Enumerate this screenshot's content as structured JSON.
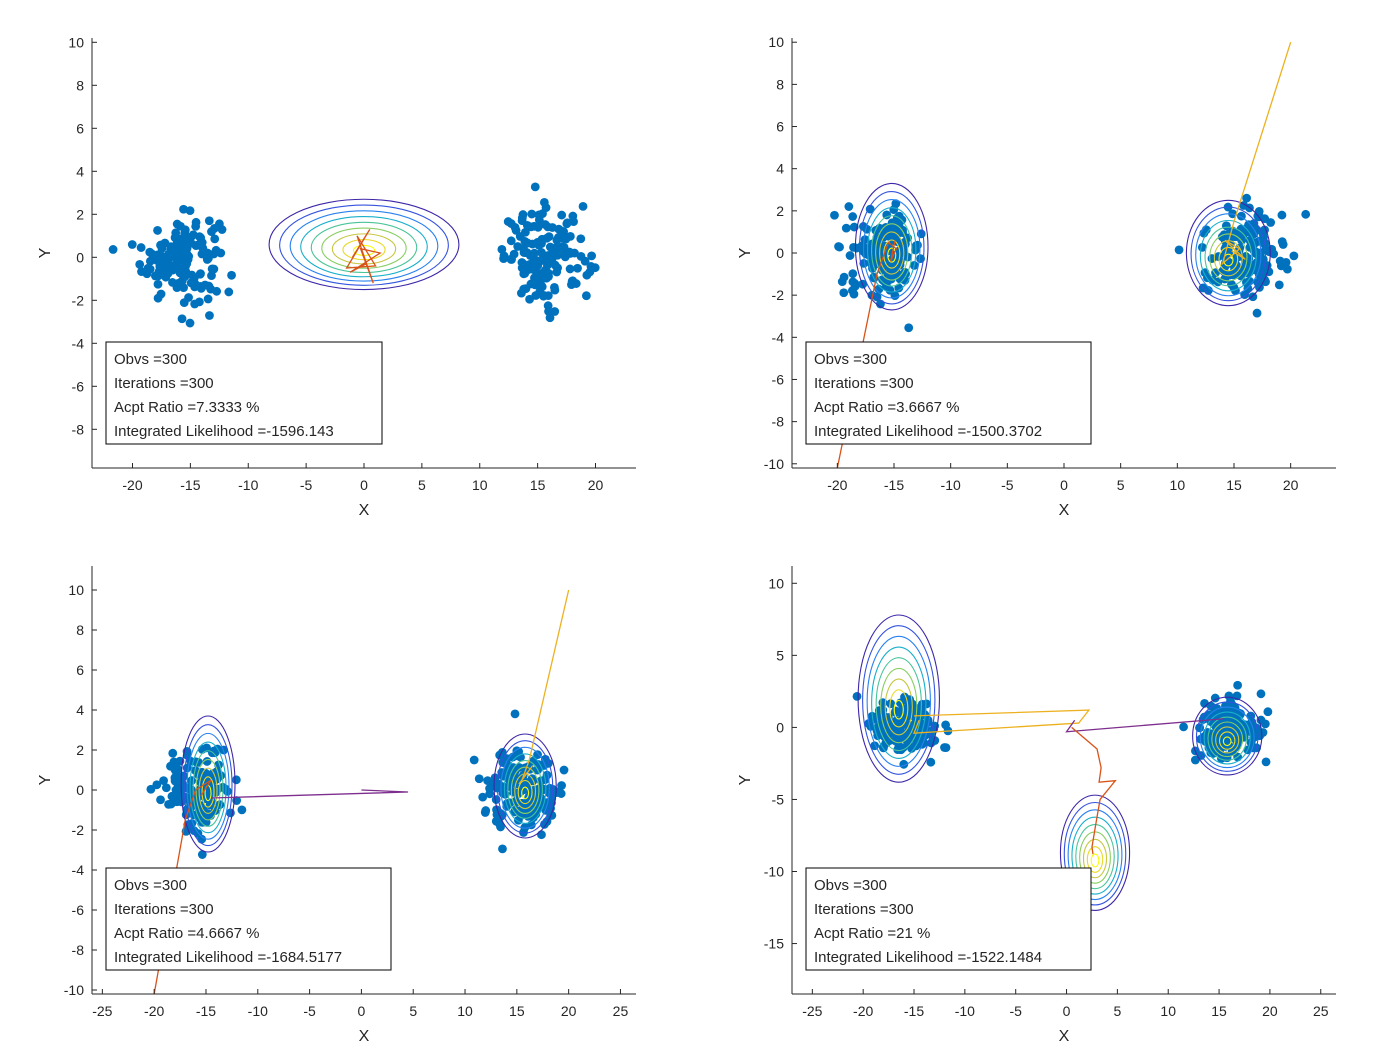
{
  "colors": {
    "points": "#0072BD",
    "axis": "#262626",
    "box_border": "#000000",
    "chain_orange": "#D95319",
    "chain_yellow": "#EDB120",
    "chain_purple": "#7E2F8E",
    "contour_colormap": [
      "#3E26A8",
      "#2E6EFF",
      "#16B8C4",
      "#7CCF6B",
      "#E0C433",
      "#F9FB0E"
    ]
  },
  "chart_data": [
    {
      "type": "scatter",
      "title": "",
      "xlabel": "X",
      "ylabel": "Y",
      "xlim": [
        -23.5,
        23.5
      ],
      "ylim": [
        -9.8,
        10.2
      ],
      "xticks": [
        -20,
        -15,
        -10,
        -5,
        0,
        5,
        10,
        15,
        20
      ],
      "yticks": [
        -8,
        -6,
        -4,
        -2,
        0,
        2,
        4,
        6,
        8,
        10
      ],
      "series": [
        {
          "cluster_center": [
            -15.8,
            0.0
          ],
          "spread": [
            2.4,
            1.0
          ],
          "count": 150
        },
        {
          "cluster_center": [
            15.8,
            0.0
          ],
          "spread": [
            2.6,
            1.1
          ],
          "count": 150
        }
      ],
      "contours": [
        {
          "center": [
            0,
            0.6
          ],
          "rx": 8.2,
          "ry": 2.1,
          "levels": 9
        }
      ],
      "chains": [
        {
          "color": "chain_orange",
          "points": [
            [
              -1,
              0
            ],
            [
              0.5,
              1.3
            ],
            [
              -1.5,
              -0.5
            ],
            [
              1,
              -0.4
            ],
            [
              -0.6,
              1.0
            ],
            [
              0.8,
              -1.2
            ],
            [
              -0.3,
              0.4
            ],
            [
              1.4,
              0.2
            ],
            [
              -1.2,
              -0.7
            ],
            [
              0.2,
              -0.3
            ]
          ]
        }
      ],
      "annotation": [
        {
          "label": "Obvs",
          "value": "300"
        },
        {
          "label": "Iterations",
          "value": "300"
        },
        {
          "label": "Acpt Ratio",
          "value": "7.3333 %"
        },
        {
          "label": "Integrated Likelihood",
          "value": "-1596.143"
        }
      ]
    },
    {
      "type": "scatter",
      "title": "",
      "xlabel": "X",
      "ylabel": "Y",
      "xlim": [
        -24,
        24
      ],
      "ylim": [
        -10.2,
        10.2
      ],
      "xticks": [
        -20,
        -15,
        -10,
        -5,
        0,
        5,
        10,
        15,
        20
      ],
      "yticks": [
        -10,
        -8,
        -6,
        -4,
        -2,
        0,
        2,
        4,
        6,
        8,
        10
      ],
      "series": [
        {
          "cluster_center": [
            -15.8,
            0.0
          ],
          "spread": [
            2.4,
            1.0
          ],
          "count": 150
        },
        {
          "cluster_center": [
            15.8,
            0.0
          ],
          "spread": [
            2.6,
            1.1
          ],
          "count": 150
        }
      ],
      "contours": [
        {
          "center": [
            -15.2,
            0.3
          ],
          "rx": 3.2,
          "ry": 3.0,
          "levels": 9
        },
        {
          "center": [
            14.5,
            0.0
          ],
          "rx": 3.7,
          "ry": 2.5,
          "levels": 9
        }
      ],
      "chains": [
        {
          "color": "chain_orange",
          "points": [
            [
              -20,
              -10.2
            ],
            [
              -16.5,
              -1
            ],
            [
              -15.5,
              0.5
            ],
            [
              -14.8,
              0.2
            ],
            [
              -15.3,
              -0.4
            ],
            [
              -14.9,
              0.6
            ]
          ]
        },
        {
          "color": "chain_yellow",
          "points": [
            [
              20,
              10
            ],
            [
              15,
              1.5
            ],
            [
              14,
              -0.5
            ],
            [
              15.5,
              0.2
            ],
            [
              14.2,
              0.6
            ],
            [
              16,
              -0.3
            ],
            [
              14.8,
              0.1
            ]
          ]
        }
      ],
      "annotation": [
        {
          "label": "Obvs",
          "value": "300"
        },
        {
          "label": "Iterations",
          "value": "300"
        },
        {
          "label": "Acpt Ratio",
          "value": "3.6667 %"
        },
        {
          "label": "Integrated Likelihood",
          "value": "-1500.3702"
        }
      ]
    },
    {
      "type": "scatter",
      "title": "",
      "xlabel": "X",
      "ylabel": "Y",
      "xlim": [
        -26,
        26.5
      ],
      "ylim": [
        -10.2,
        11.2
      ],
      "xticks": [
        -25,
        -20,
        -15,
        -10,
        -5,
        0,
        5,
        10,
        15,
        20,
        25
      ],
      "yticks": [
        -10,
        -8,
        -6,
        -4,
        -2,
        0,
        2,
        4,
        6,
        8,
        10
      ],
      "series": [
        {
          "cluster_center": [
            -15.8,
            0.0
          ],
          "spread": [
            2.4,
            1.0
          ],
          "count": 150
        },
        {
          "cluster_center": [
            15.8,
            0.0
          ],
          "spread": [
            2.6,
            1.1
          ],
          "count": 150
        }
      ],
      "contours": [
        {
          "center": [
            -14.8,
            0.3
          ],
          "rx": 2.6,
          "ry": 3.4,
          "levels": 9
        },
        {
          "center": [
            15.8,
            0.2
          ],
          "rx": 3.0,
          "ry": 2.6,
          "levels": 9
        }
      ],
      "chains": [
        {
          "color": "chain_orange",
          "points": [
            [
              -20,
              -10.2
            ],
            [
              -17,
              -1.5
            ],
            [
              -16,
              0
            ],
            [
              -14.5,
              0.5
            ],
            [
              -15.5,
              -0.3
            ]
          ]
        },
        {
          "color": "chain_yellow",
          "points": [
            [
              20,
              10
            ],
            [
              16.2,
              1.5
            ],
            [
              15.5,
              0.5
            ],
            [
              16.5,
              1.2
            ],
            [
              15.2,
              0.3
            ]
          ]
        },
        {
          "color": "chain_purple",
          "points": [
            [
              -14.5,
              -0.4
            ],
            [
              4.5,
              -0.1
            ],
            [
              0,
              0
            ]
          ]
        }
      ],
      "annotation": [
        {
          "label": "Obvs",
          "value": "300"
        },
        {
          "label": "Iterations",
          "value": "300"
        },
        {
          "label": "Acpt Ratio",
          "value": "4.6667 %"
        },
        {
          "label": "Integrated Likelihood",
          "value": "-1684.5177"
        }
      ]
    },
    {
      "type": "scatter",
      "title": "",
      "xlabel": "X",
      "ylabel": "Y",
      "xlim": [
        -27,
        26.5
      ],
      "ylim": [
        -18.5,
        11.2
      ],
      "xticks": [
        -25,
        -20,
        -15,
        -10,
        -5,
        0,
        5,
        10,
        15,
        20,
        25
      ],
      "yticks": [
        -15,
        -10,
        -5,
        0,
        5,
        10
      ],
      "series": [
        {
          "cluster_center": [
            -15.8,
            0.0
          ],
          "spread": [
            2.4,
            1.0
          ],
          "count": 150
        },
        {
          "cluster_center": [
            15.8,
            0.0
          ],
          "spread": [
            2.6,
            1.1
          ],
          "count": 150
        }
      ],
      "contours": [
        {
          "center": [
            -16.5,
            2.0
          ],
          "rx": 4.0,
          "ry": 5.8,
          "levels": 9
        },
        {
          "center": [
            15.8,
            -0.6
          ],
          "rx": 3.4,
          "ry": 2.7,
          "levels": 9
        },
        {
          "center": [
            2.8,
            -8.7
          ],
          "rx": 3.4,
          "ry": 4.0,
          "levels": 9
        }
      ],
      "chains": [
        {
          "color": "chain_yellow",
          "points": [
            [
              -15,
              0.8
            ],
            [
              2.2,
              1.2
            ],
            [
              1.2,
              0.3
            ],
            [
              -15,
              -0.4
            ],
            [
              -14.5,
              0.5
            ]
          ]
        },
        {
          "color": "chain_purple",
          "points": [
            [
              15.5,
              0.6
            ],
            [
              0,
              -0.3
            ],
            [
              0.8,
              0.5
            ]
          ]
        },
        {
          "color": "chain_orange",
          "points": [
            [
              0.5,
              0
            ],
            [
              3,
              -1.5
            ],
            [
              3.4,
              -2.8
            ],
            [
              3.2,
              -3.8
            ],
            [
              4.8,
              -3.7
            ],
            [
              3.3,
              -5
            ],
            [
              3,
              -6.2
            ],
            [
              2.5,
              -8.3
            ],
            [
              2.6,
              -8.8
            ]
          ]
        }
      ],
      "annotation": [
        {
          "label": "Obvs",
          "value": "300"
        },
        {
          "label": "Iterations",
          "value": "300"
        },
        {
          "label": "Acpt Ratio",
          "value": "21 %"
        },
        {
          "label": "Integrated Likelihood",
          "value": "-1522.1484"
        }
      ]
    }
  ]
}
